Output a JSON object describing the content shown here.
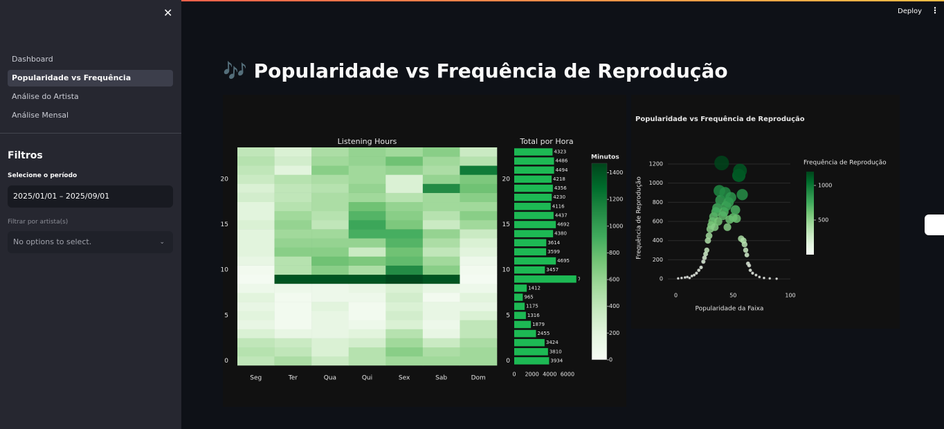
{
  "header": {
    "deploy": "Deploy"
  },
  "sidebar": {
    "nav": [
      "Dashboard",
      "Popularidade vs Frequência",
      "Análise do Artista",
      "Análise Mensal"
    ],
    "active_nav": 1,
    "filters_title": "Filtros",
    "period_label": "Selecione o período",
    "period_value": "2025/01/01 – 2025/09/01",
    "artist_label": "Filtrar por artista(s)",
    "artist_placeholder": "No options to select."
  },
  "title": "🎶 Popularidade vs Frequência de Reprodução",
  "chart_data": [
    {
      "type": "heatmap",
      "title": "Listening Hours",
      "categories": [
        "Seg",
        "Ter",
        "Qua",
        "Qui",
        "Sex",
        "Sab",
        "Dom"
      ],
      "y": [
        0,
        1,
        2,
        3,
        4,
        5,
        6,
        7,
        8,
        9,
        10,
        11,
        12,
        13,
        14,
        15,
        16,
        17,
        18,
        19,
        20,
        21,
        22,
        23
      ],
      "ylim": [
        -0.5,
        23.5
      ],
      "yticks": [
        0,
        5,
        10,
        15,
        20
      ],
      "z": [
        [
          400,
          500,
          350,
          450,
          550,
          550,
          550
        ],
        [
          450,
          400,
          250,
          450,
          650,
          500,
          550
        ],
        [
          400,
          350,
          250,
          300,
          550,
          350,
          500
        ],
        [
          250,
          150,
          150,
          200,
          450,
          150,
          400
        ],
        [
          150,
          50,
          150,
          100,
          250,
          100,
          400
        ],
        [
          200,
          50,
          150,
          50,
          300,
          150,
          250
        ],
        [
          150,
          50,
          200,
          50,
          250,
          150,
          150
        ],
        [
          200,
          50,
          100,
          100,
          300,
          50,
          200
        ],
        [
          100,
          100,
          100,
          150,
          250,
          150,
          100
        ],
        [
          30,
          1400,
          1400,
          1400,
          1450,
          1400,
          30
        ],
        [
          50,
          450,
          650,
          500,
          1100,
          650,
          50
        ],
        [
          150,
          450,
          750,
          700,
          800,
          550,
          100
        ],
        [
          200,
          650,
          650,
          350,
          750,
          400,
          200
        ],
        [
          200,
          600,
          600,
          600,
          850,
          500,
          250
        ],
        [
          200,
          550,
          550,
          900,
          900,
          600,
          350
        ],
        [
          250,
          600,
          400,
          950,
          700,
          350,
          550
        ],
        [
          200,
          550,
          450,
          850,
          650,
          450,
          650
        ],
        [
          200,
          450,
          500,
          750,
          600,
          550,
          550
        ],
        [
          300,
          400,
          500,
          550,
          450,
          550,
          650
        ],
        [
          250,
          400,
          450,
          600,
          250,
          1100,
          750
        ],
        [
          350,
          450,
          500,
          550,
          250,
          600,
          700
        ],
        [
          400,
          200,
          650,
          550,
          600,
          500,
          1200
        ],
        [
          450,
          300,
          550,
          600,
          750,
          550,
          450
        ],
        [
          400,
          250,
          500,
          600,
          550,
          650,
          350
        ]
      ],
      "zlim": [
        0,
        1470
      ],
      "colorbar_title": "Minutos",
      "zticks": [
        0,
        200,
        400,
        600,
        800,
        1000,
        1200,
        1400
      ],
      "colorscale": [
        "#f7fcf5",
        "#e5f5e0",
        "#c7e9c0",
        "#a1d99b",
        "#74c476",
        "#41ab5d",
        "#238b45",
        "#006d2c",
        "#00441b"
      ]
    },
    {
      "type": "bar",
      "orientation": "h",
      "title": "Total por Hora",
      "y": [
        0,
        1,
        2,
        3,
        4,
        5,
        6,
        7,
        8,
        9,
        10,
        11,
        12,
        13,
        14,
        15,
        16,
        17,
        18,
        19,
        20,
        21,
        22,
        23
      ],
      "values": [
        3934,
        3810,
        3424,
        2455,
        1879,
        1316,
        1175,
        965,
        1412,
        7000,
        3457,
        4695,
        3599,
        3614,
        4380,
        4692,
        4437,
        4116,
        4230,
        4356,
        4218,
        4494,
        4486,
        4323
      ],
      "ylim": [
        -0.5,
        23.5
      ],
      "yticks": [
        0,
        5,
        10,
        15,
        20
      ],
      "xlim": [
        0,
        7100
      ],
      "xticks": [
        0,
        2000,
        4000,
        6000
      ],
      "color": "#1db954"
    },
    {
      "type": "scatter",
      "title": "Popularidade vs Frequência de Reprodução",
      "x_label": "Popularidade da Faixa",
      "y_label": "Frequência de Reprodução",
      "x": [
        2,
        5,
        8,
        10,
        12,
        14,
        16,
        18,
        20,
        22,
        24,
        25,
        26,
        27,
        28,
        29,
        30,
        31,
        32,
        33,
        34,
        35,
        36,
        37,
        38,
        39,
        40,
        41,
        42,
        43,
        44,
        45,
        46,
        47,
        48,
        50,
        52,
        53,
        55,
        56,
        57,
        58,
        59,
        60,
        61,
        62,
        63,
        64,
        65,
        67,
        70,
        73,
        77,
        82,
        88
      ],
      "y": [
        5,
        10,
        15,
        20,
        10,
        30,
        40,
        60,
        90,
        120,
        180,
        220,
        260,
        300,
        400,
        450,
        520,
        560,
        600,
        650,
        540,
        700,
        740,
        600,
        920,
        820,
        1210,
        660,
        700,
        900,
        760,
        540,
        800,
        620,
        850,
        640,
        720,
        630,
        1080,
        1130,
        420,
        880,
        400,
        360,
        300,
        250,
        160,
        140,
        90,
        60,
        40,
        20,
        10,
        5,
        2
      ],
      "xlim": [
        -7,
        100
      ],
      "ylim": [
        -50,
        1308
      ],
      "xticks": [
        0,
        50,
        100
      ],
      "yticks": [
        0,
        200,
        400,
        600,
        800,
        1000,
        1200
      ],
      "colorbar_title": "Frequência de Reprodução",
      "zlim": [
        0,
        1200
      ],
      "zticks": [
        500,
        1000
      ],
      "colorscale": [
        "#f7fcf5",
        "#e5f5e0",
        "#c7e9c0",
        "#a1d99b",
        "#74c476",
        "#41ab5d",
        "#238b45",
        "#006d2c",
        "#00441b"
      ],
      "grid": true
    }
  ]
}
